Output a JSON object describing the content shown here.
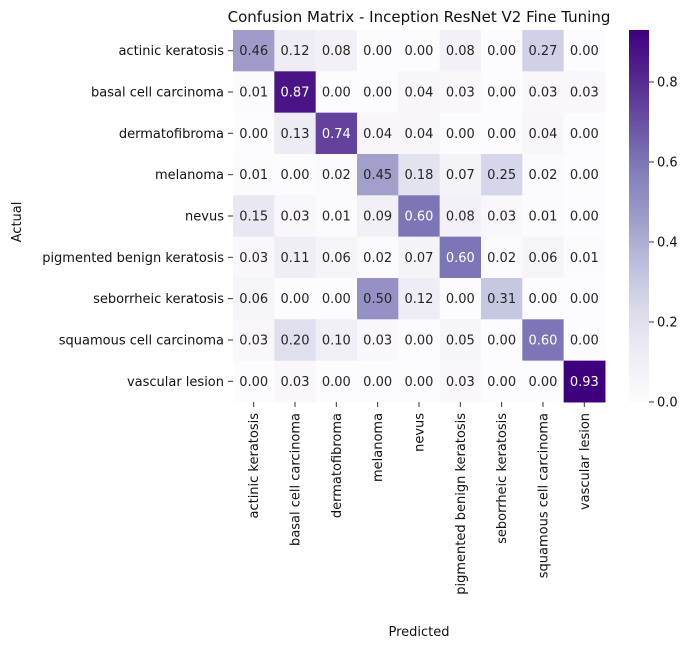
{
  "chart_data": {
    "type": "heatmap",
    "title": "Confusion Matrix - Inception ResNet V2 Fine Tuning",
    "xlabel": "Predicted",
    "ylabel": "Actual",
    "row_labels": [
      "actinic keratosis",
      "basal cell carcinoma",
      "dermatofibroma",
      "melanoma",
      "nevus",
      "pigmented benign keratosis",
      "seborrheic keratosis",
      "squamous cell carcinoma",
      "vascular lesion"
    ],
    "col_labels": [
      "actinic keratosis",
      "basal cell carcinoma",
      "dermatofibroma",
      "melanoma",
      "nevus",
      "pigmented benign keratosis",
      "seborrheic keratosis",
      "squamous cell carcinoma",
      "vascular lesion"
    ],
    "values": [
      [
        0.46,
        0.12,
        0.08,
        0.0,
        0.0,
        0.08,
        0.0,
        0.27,
        0.0
      ],
      [
        0.01,
        0.87,
        0.0,
        0.0,
        0.04,
        0.03,
        0.0,
        0.03,
        0.03
      ],
      [
        0.0,
        0.13,
        0.74,
        0.04,
        0.04,
        0.0,
        0.0,
        0.04,
        0.0
      ],
      [
        0.01,
        0.0,
        0.02,
        0.45,
        0.18,
        0.07,
        0.25,
        0.02,
        0.0
      ],
      [
        0.15,
        0.03,
        0.01,
        0.09,
        0.6,
        0.08,
        0.03,
        0.01,
        0.0
      ],
      [
        0.03,
        0.11,
        0.06,
        0.02,
        0.07,
        0.6,
        0.02,
        0.06,
        0.01
      ],
      [
        0.06,
        0.0,
        0.0,
        0.5,
        0.12,
        0.0,
        0.31,
        0.0,
        0.0
      ],
      [
        0.03,
        0.2,
        0.1,
        0.03,
        0.0,
        0.05,
        0.0,
        0.6,
        0.0
      ],
      [
        0.0,
        0.03,
        0.0,
        0.0,
        0.0,
        0.03,
        0.0,
        0.0,
        0.93
      ]
    ],
    "colormap": "Purples",
    "colorbar": {
      "range": [
        0.0,
        0.93
      ],
      "ticks": [
        0.0,
        0.2,
        0.4,
        0.6,
        0.8
      ],
      "tick_labels": [
        "0.0",
        "0.2",
        "0.4",
        "0.6",
        "0.8"
      ]
    }
  }
}
